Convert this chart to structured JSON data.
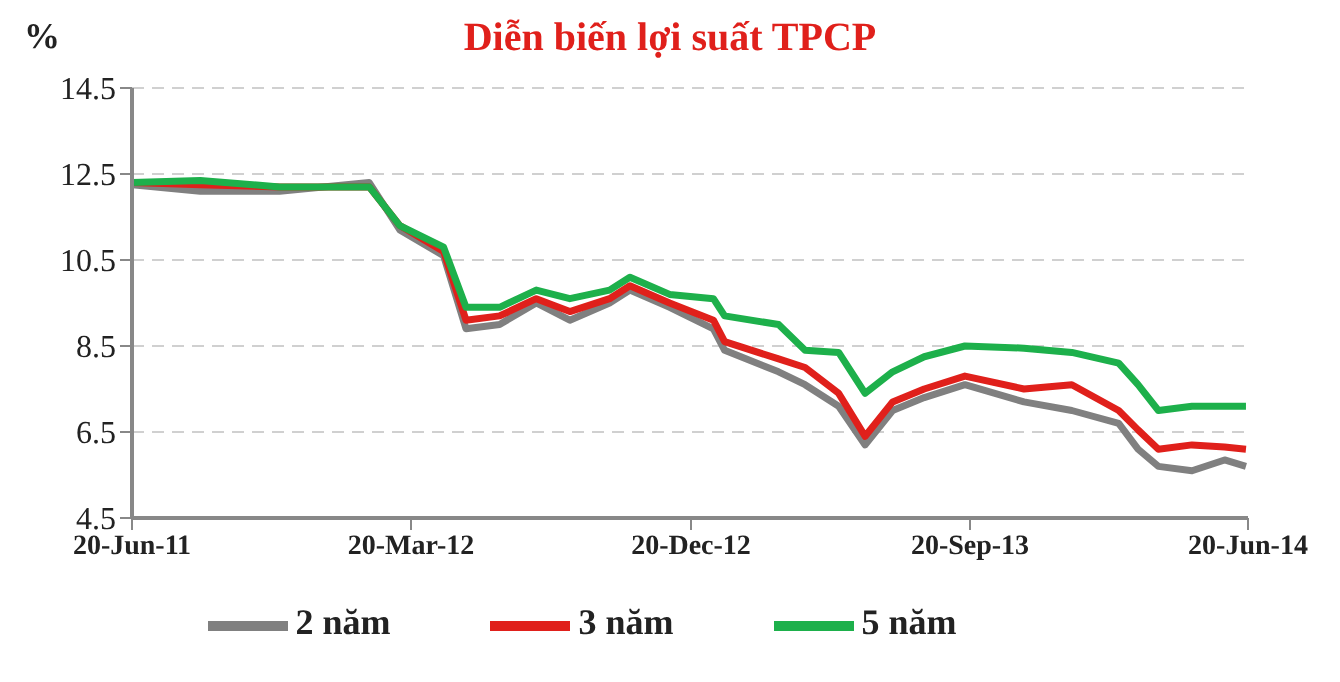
{
  "chart_data": {
    "type": "line",
    "title": "Diễn biến lợi suất TPCP",
    "ylabel": "%",
    "x": [
      "2011-06-20",
      "2011-08-26",
      "2011-11-12",
      "2012-02-08",
      "2012-03-09",
      "2012-04-21",
      "2012-05-13",
      "2012-06-15",
      "2012-07-21",
      "2012-08-23",
      "2012-10-01",
      "2012-10-21",
      "2012-11-29",
      "2013-01-11",
      "2013-01-22",
      "2013-03-16",
      "2013-04-11",
      "2013-05-14",
      "2013-06-09",
      "2013-07-06",
      "2013-08-06",
      "2013-09-15",
      "2013-11-12",
      "2013-12-29",
      "2014-02-13",
      "2014-03-04",
      "2014-03-24",
      "2014-04-26",
      "2014-05-28",
      "2014-06-18"
    ],
    "series": [
      {
        "name": "2 năm",
        "color": "#808080",
        "values": [
          12.25,
          12.1,
          12.1,
          12.3,
          11.2,
          10.6,
          8.9,
          9.0,
          9.5,
          9.1,
          9.5,
          9.8,
          9.4,
          8.9,
          8.4,
          7.9,
          7.6,
          7.1,
          6.2,
          7.0,
          7.3,
          7.6,
          7.2,
          7.0,
          6.7,
          6.1,
          5.7,
          5.6,
          5.85,
          5.7
        ]
      },
      {
        "name": "3 năm",
        "color": "#e0201b",
        "values": [
          12.3,
          12.25,
          12.2,
          12.2,
          11.3,
          10.7,
          9.1,
          9.2,
          9.6,
          9.3,
          9.6,
          9.9,
          9.5,
          9.1,
          8.6,
          8.2,
          8.0,
          7.4,
          6.4,
          7.2,
          7.5,
          7.8,
          7.5,
          7.6,
          7.0,
          6.55,
          6.1,
          6.2,
          6.15,
          6.1
        ]
      },
      {
        "name": "5 năm",
        "color": "#1db04b",
        "values": [
          12.3,
          12.35,
          12.2,
          12.2,
          11.3,
          10.8,
          9.4,
          9.4,
          9.8,
          9.6,
          9.8,
          10.1,
          9.7,
          9.6,
          9.2,
          9.0,
          8.4,
          8.35,
          7.4,
          7.9,
          8.25,
          8.5,
          8.45,
          8.35,
          8.1,
          7.6,
          7.0,
          7.1,
          7.1,
          7.1
        ]
      }
    ],
    "xlim": [
      "2011-06-20",
      "2014-06-20"
    ],
    "xticks": [
      {
        "value": "2011-06-20",
        "label": "20-Jun-11"
      },
      {
        "value": "2012-03-20",
        "label": "20-Mar-12"
      },
      {
        "value": "2012-12-20",
        "label": "20-Dec-12"
      },
      {
        "value": "2013-09-20",
        "label": "20-Sep-13"
      },
      {
        "value": "2014-06-20",
        "label": "20-Jun-14"
      }
    ],
    "ylim": [
      4.5,
      14.5
    ],
    "yticks": [
      4.5,
      6.5,
      8.5,
      10.5,
      12.5,
      14.5
    ],
    "grid": "y",
    "legend": "bottom",
    "marker": "none",
    "line_style": "solid"
  }
}
